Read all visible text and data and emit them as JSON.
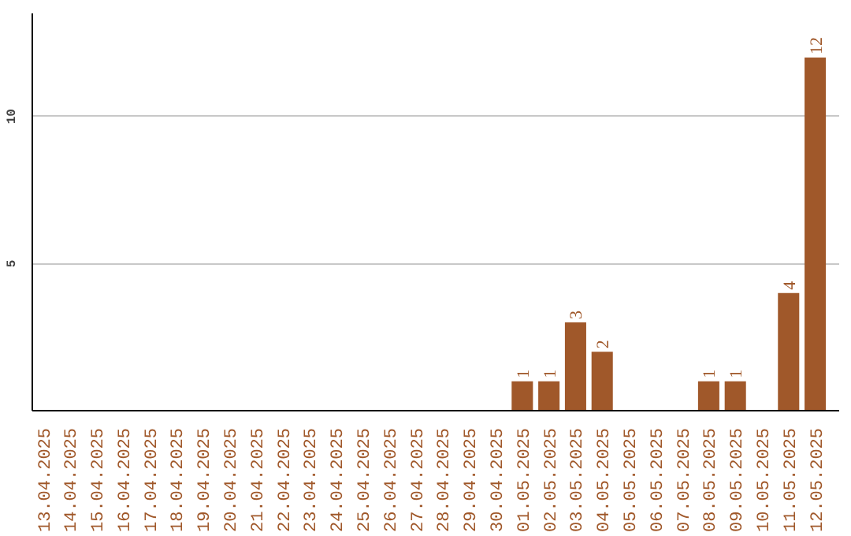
{
  "chart_data": {
    "type": "bar",
    "categories": [
      "13.04.2025",
      "14.04.2025",
      "15.04.2025",
      "16.04.2025",
      "17.04.2025",
      "18.04.2025",
      "19.04.2025",
      "20.04.2025",
      "21.04.2025",
      "22.04.2025",
      "23.04.2025",
      "24.04.2025",
      "25.04.2025",
      "26.04.2025",
      "27.04.2025",
      "28.04.2025",
      "29.04.2025",
      "30.04.2025",
      "01.05.2025",
      "02.05.2025",
      "03.05.2025",
      "04.05.2025",
      "05.05.2025",
      "06.05.2025",
      "07.05.2025",
      "08.05.2025",
      "09.05.2025",
      "10.05.2025",
      "11.05.2025",
      "12.05.2025"
    ],
    "values": [
      0,
      0,
      0,
      0,
      0,
      0,
      0,
      0,
      0,
      0,
      0,
      0,
      0,
      0,
      0,
      0,
      0,
      0,
      1,
      1,
      3,
      2,
      0,
      0,
      0,
      1,
      1,
      0,
      4,
      12
    ],
    "value_labels": [
      null,
      null,
      null,
      null,
      null,
      null,
      null,
      null,
      null,
      null,
      null,
      null,
      null,
      null,
      null,
      null,
      null,
      null,
      "1",
      "1",
      "3",
      "2",
      null,
      null,
      null,
      "1",
      "1",
      null,
      "4",
      "12"
    ],
    "color": "#a0582a",
    "ylim": [
      0,
      13.5
    ],
    "yticks": [
      5,
      10
    ],
    "grid": "y"
  }
}
